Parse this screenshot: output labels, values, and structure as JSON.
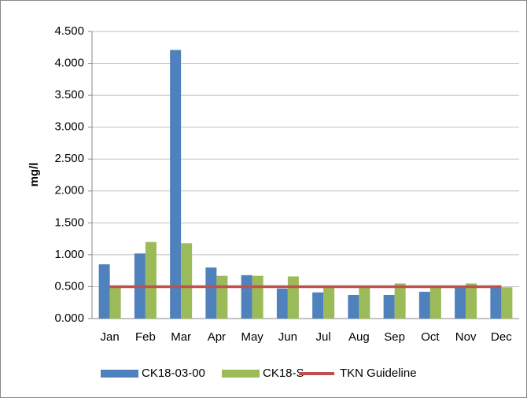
{
  "chart_data": {
    "type": "bar",
    "y_label": "mg/l",
    "categories": [
      "Jan",
      "Feb",
      "Mar",
      "Apr",
      "May",
      "Jun",
      "Jul",
      "Aug",
      "Sep",
      "Oct",
      "Nov",
      "Dec"
    ],
    "series": [
      {
        "name": "CK18-03-00",
        "color": "#4f81bd",
        "values": [
          0.85,
          1.02,
          4.21,
          0.8,
          0.68,
          0.47,
          0.41,
          0.37,
          0.37,
          0.42,
          0.5,
          0.52
        ]
      },
      {
        "name": "CK18-S",
        "color": "#9bbb59",
        "values": [
          0.5,
          1.2,
          1.18,
          0.67,
          0.67,
          0.66,
          0.52,
          0.5,
          0.55,
          0.5,
          0.55,
          0.49
        ]
      },
      {
        "name": "TKN Guideline",
        "type": "line",
        "color": "#c0504d",
        "values": [
          0.5,
          0.5,
          0.5,
          0.5,
          0.5,
          0.5,
          0.5,
          0.5,
          0.5,
          0.5,
          0.5,
          0.5
        ]
      }
    ],
    "ylim": [
      0,
      4.5
    ],
    "yticks": [
      {
        "value": 0,
        "label": "0.000"
      },
      {
        "value": 0.5,
        "label": "0.500"
      },
      {
        "value": 1,
        "label": "1.000"
      },
      {
        "value": 1.5,
        "label": "1.500"
      },
      {
        "value": 2,
        "label": "2.000"
      },
      {
        "value": 2.5,
        "label": "2.500"
      },
      {
        "value": 3,
        "label": "3.000"
      },
      {
        "value": 3.5,
        "label": "3.500"
      },
      {
        "value": 4,
        "label": "4.000"
      },
      {
        "value": 4.5,
        "label": "4.500"
      }
    ],
    "grid": true,
    "legend": "bottom"
  }
}
